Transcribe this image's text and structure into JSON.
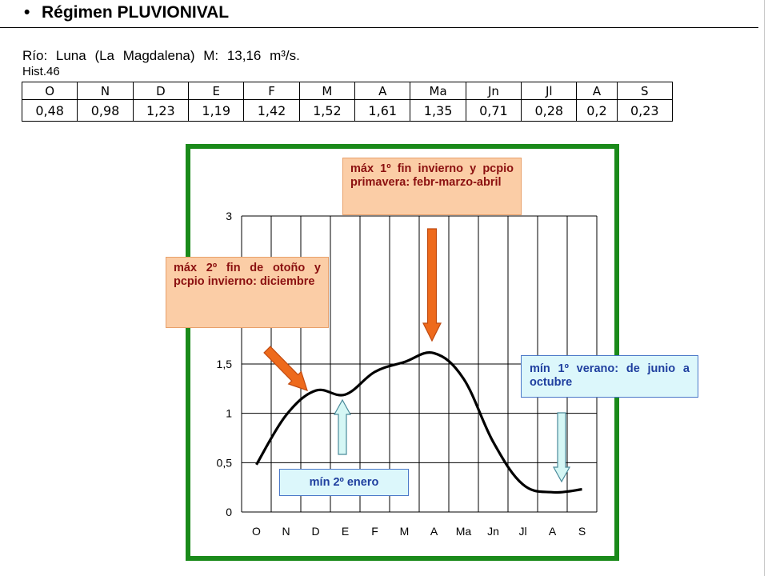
{
  "heading": {
    "bullet": "•",
    "title": "Régimen PLUVIONIVAL"
  },
  "river": {
    "line": "Río: Luna (La Magdalena) M: 13,16 m³/s.",
    "hist": "Hist.46"
  },
  "table": {
    "headers": [
      "O",
      "N",
      "D",
      "E",
      "F",
      "M",
      "A",
      "Ma",
      "Jn",
      "Jl",
      "A",
      "S"
    ],
    "values": [
      "0,48",
      "0,98",
      "1,23",
      "1,19",
      "1,42",
      "1,52",
      "1,61",
      "1,35",
      "0,71",
      "0,28",
      "0,2",
      "0,23"
    ]
  },
  "chart_data": {
    "type": "line",
    "title": "",
    "xlabel": "",
    "ylabel": "",
    "categories": [
      "O",
      "N",
      "D",
      "E",
      "F",
      "M",
      "A",
      "Ma",
      "Jn",
      "Jl",
      "A",
      "S"
    ],
    "values": [
      0.48,
      0.98,
      1.23,
      1.19,
      1.42,
      1.52,
      1.61,
      1.35,
      0.71,
      0.28,
      0.2,
      0.23
    ],
    "ylim": [
      0,
      3
    ],
    "yticks": [
      0,
      0.5,
      1,
      1.5,
      3
    ],
    "ytick_labels": [
      "0",
      "0,5",
      "1",
      "1,5",
      "3"
    ],
    "grid": true,
    "line_color": "#000000"
  },
  "annotations": {
    "max1": "máx 1º fin invierno y pcpio primavera: febr-marzo-abril",
    "max2": "máx 2º fin de otoño y pcpio invierno: diciembre",
    "min1": "mín 1º verano: de junio a octubre",
    "min2": "mín 2º enero"
  },
  "colors": {
    "frame": "#1a8a1a",
    "arrow_orange": "#ee6a1c",
    "arrow_blue": "#d5f7f5",
    "note_orange_bg": "#fbcda6",
    "note_blue_bg": "#dcf7fb"
  }
}
